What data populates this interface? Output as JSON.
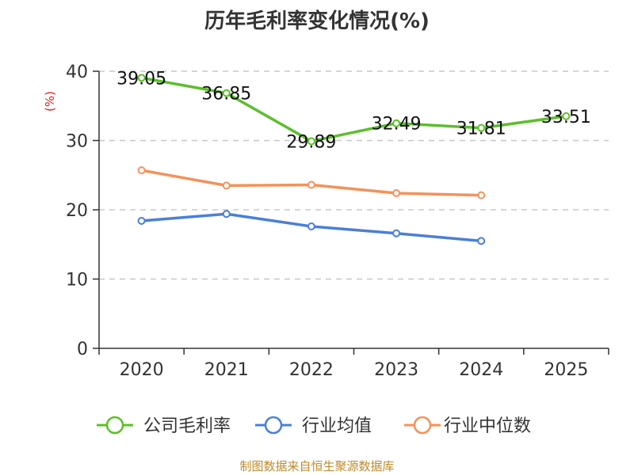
{
  "chart_data": {
    "type": "line",
    "title": "历年毛利率变化情况(%)",
    "ylabel": "(%)",
    "xlabel": "",
    "categories": [
      "2020",
      "2021",
      "2022",
      "2023",
      "2024",
      "2025"
    ],
    "ylim": [
      0,
      40
    ],
    "yticks": [
      0,
      10,
      20,
      30,
      40
    ],
    "grid": true,
    "legend_position": "bottom",
    "series": [
      {
        "name": "公司毛利率",
        "color": "#5cbf2a",
        "values": [
          39.05,
          36.85,
          29.89,
          32.49,
          31.81,
          33.51
        ],
        "labels": [
          "39.05",
          "36.85",
          "29.89",
          "32.49",
          "31.81",
          "33.51"
        ]
      },
      {
        "name": "行业均值",
        "color": "#4b7fd8",
        "values": [
          18.4,
          19.4,
          17.6,
          16.6,
          15.5,
          null
        ]
      },
      {
        "name": "行业中位数",
        "color": "#f5915a",
        "values": [
          25.7,
          23.5,
          23.6,
          22.4,
          22.1,
          null
        ]
      }
    ]
  },
  "footer": {
    "source": "制图数据来自恒生聚源数据库"
  }
}
